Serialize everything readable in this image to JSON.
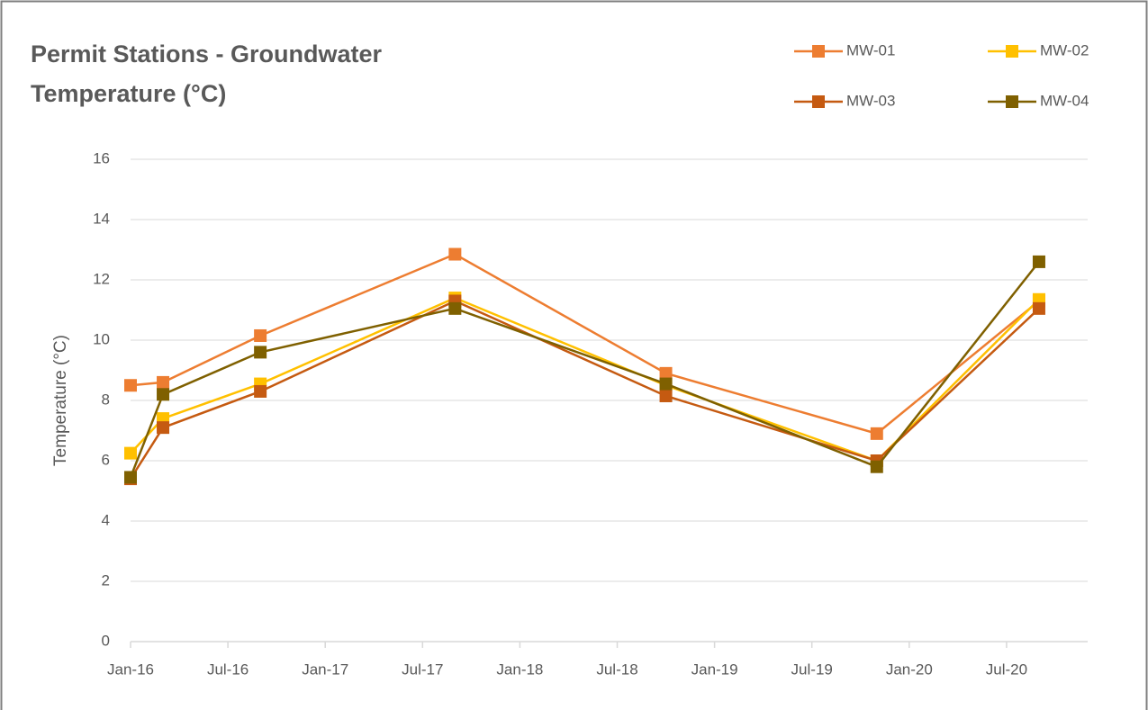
{
  "chart_data": {
    "type": "line",
    "title": "Permit Stations - Groundwater Temperature (°C)",
    "y_label": "Temperature (°C)",
    "x": [
      "2016-01",
      "2016-03",
      "2016-09",
      "2017-09",
      "2018-10",
      "2019-11",
      "2020-09"
    ],
    "series": [
      {
        "name": "MW-01",
        "color": "#ed7d31",
        "values": [
          8.5,
          8.6,
          10.15,
          12.85,
          8.9,
          6.9,
          11.3
        ]
      },
      {
        "name": "MW-02",
        "color": "#ffc000",
        "values": [
          6.25,
          7.4,
          8.55,
          11.4,
          8.5,
          6.0,
          11.35
        ]
      },
      {
        "name": "MW-03",
        "color": "#c55a11",
        "values": [
          5.4,
          7.1,
          8.3,
          11.3,
          8.15,
          6.0,
          11.05
        ]
      },
      {
        "name": "MW-04",
        "color": "#7f6000",
        "values": [
          5.45,
          8.2,
          9.6,
          11.05,
          8.55,
          5.8,
          12.6
        ]
      }
    ],
    "xlim": [
      "2016-01",
      "2020-12"
    ],
    "xticks": [
      {
        "value": "2016-01",
        "label": "Jan-16"
      },
      {
        "value": "2016-07",
        "label": "Jul-16"
      },
      {
        "value": "2017-01",
        "label": "Jan-17"
      },
      {
        "value": "2017-07",
        "label": "Jul-17"
      },
      {
        "value": "2018-01",
        "label": "Jan-18"
      },
      {
        "value": "2018-07",
        "label": "Jul-18"
      },
      {
        "value": "2019-01",
        "label": "Jan-19"
      },
      {
        "value": "2019-07",
        "label": "Jul-19"
      },
      {
        "value": "2020-01",
        "label": "Jan-20"
      },
      {
        "value": "2020-07",
        "label": "Jul-20"
      }
    ],
    "ylim": [
      0,
      16
    ],
    "yticks": [
      0,
      2,
      4,
      6,
      8,
      10,
      12,
      14,
      16
    ],
    "grid": true,
    "legend": "top-right"
  }
}
